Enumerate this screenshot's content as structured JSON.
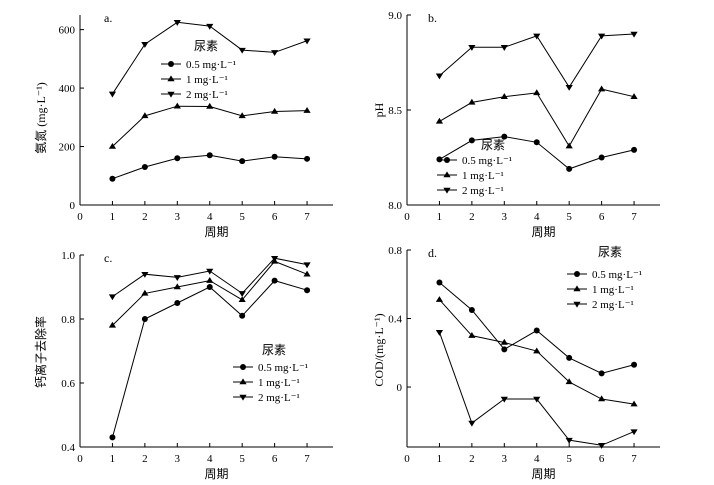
{
  "chart_data": [
    {
      "id": "a",
      "type": "line",
      "panel_label": "a.",
      "xlabel": "周期",
      "ylabel": "氨氮 (mg·L⁻¹)",
      "legend_title": "尿素",
      "x": [
        1,
        2,
        3,
        4,
        5,
        6,
        7
      ],
      "xticks": [
        "0",
        "1",
        "2",
        "3",
        "4",
        "5",
        "6",
        "7"
      ],
      "ylim": [
        0,
        650
      ],
      "yticks": [
        0,
        200,
        400,
        600
      ],
      "ytick_labels": [
        "0",
        "200",
        "400",
        "600"
      ],
      "series": [
        {
          "name": "0.5 mg·L⁻¹",
          "marker": "circle",
          "values": [
            90,
            130,
            160,
            170,
            150,
            165,
            158
          ]
        },
        {
          "name": "1 mg·L⁻¹",
          "marker": "triangle-up",
          "values": [
            200,
            305,
            338,
            337,
            305,
            320,
            323
          ]
        },
        {
          "name": "2 mg·L⁻¹",
          "marker": "triangle-down",
          "values": [
            380,
            550,
            625,
            612,
            530,
            522,
            562
          ]
        }
      ]
    },
    {
      "id": "b",
      "type": "line",
      "panel_label": "b.",
      "xlabel": "周期",
      "ylabel": "pH",
      "legend_title": "尿素",
      "x": [
        1,
        2,
        3,
        4,
        5,
        6,
        7
      ],
      "xticks": [
        "0",
        "1",
        "2",
        "3",
        "4",
        "5",
        "6",
        "7"
      ],
      "ylim": [
        8.0,
        9.0
      ],
      "yticks": [
        8.0,
        8.5,
        9.0
      ],
      "ytick_labels": [
        "8.0",
        "8.5",
        "9.0"
      ],
      "series": [
        {
          "name": "0.5 mg·L⁻¹",
          "marker": "circle",
          "values": [
            8.24,
            8.34,
            8.36,
            8.33,
            8.19,
            8.25,
            8.29
          ]
        },
        {
          "name": "1 mg·L⁻¹",
          "marker": "triangle-up",
          "values": [
            8.44,
            8.54,
            8.57,
            8.59,
            8.31,
            8.61,
            8.57
          ]
        },
        {
          "name": "2 mg·L⁻¹",
          "marker": "triangle-down",
          "values": [
            8.68,
            8.83,
            8.83,
            8.89,
            8.62,
            8.89,
            8.9
          ]
        }
      ]
    },
    {
      "id": "c",
      "type": "line",
      "panel_label": "c.",
      "xlabel": "周期",
      "ylabel": "钙离子去除率",
      "legend_title": "尿素",
      "x": [
        1,
        2,
        3,
        4,
        5,
        6,
        7
      ],
      "xticks": [
        "0",
        "1",
        "2",
        "3",
        "4",
        "5",
        "6",
        "7"
      ],
      "ylim": [
        0.4,
        1.0
      ],
      "yticks": [
        0.4,
        0.6,
        0.8,
        1.0
      ],
      "ytick_labels": [
        "0.4",
        "0.6",
        "0.8",
        "1.0"
      ],
      "series": [
        {
          "name": "0.5 mg·L⁻¹",
          "marker": "circle",
          "values": [
            0.43,
            0.8,
            0.85,
            0.9,
            0.81,
            0.92,
            0.89
          ]
        },
        {
          "name": "1 mg·L⁻¹",
          "marker": "triangle-up",
          "values": [
            0.78,
            0.88,
            0.9,
            0.92,
            0.86,
            0.98,
            0.94
          ]
        },
        {
          "name": "2 mg·L⁻¹",
          "marker": "triangle-down",
          "values": [
            0.87,
            0.94,
            0.93,
            0.95,
            0.88,
            0.99,
            0.97
          ]
        }
      ]
    },
    {
      "id": "d",
      "type": "line",
      "panel_label": "d.",
      "xlabel": "周期",
      "ylabel": "COD/(mg·L⁻¹)",
      "legend_title": "尿素",
      "x": [
        1,
        2,
        3,
        4,
        5,
        6,
        7
      ],
      "xticks": [
        "0",
        "1",
        "2",
        "3",
        "4",
        "5",
        "6",
        "7"
      ],
      "ylim": [
        -0.35,
        0.8
      ],
      "yticks": [
        0,
        0.4,
        0.8
      ],
      "ytick_labels": [
        "0",
        "0.4",
        "0.8"
      ],
      "series": [
        {
          "name": "0.5 mg·L⁻¹",
          "marker": "circle",
          "values": [
            0.61,
            0.45,
            0.22,
            0.33,
            0.17,
            0.08,
            0.13
          ]
        },
        {
          "name": "1 mg·L⁻¹",
          "marker": "triangle-up",
          "values": [
            0.51,
            0.3,
            0.26,
            0.21,
            0.03,
            -0.07,
            -0.1
          ]
        },
        {
          "name": "2 mg·L⁻¹",
          "marker": "triangle-down",
          "values": [
            0.32,
            -0.21,
            -0.07,
            -0.07,
            -0.31,
            -0.34,
            -0.26
          ]
        }
      ]
    }
  ]
}
